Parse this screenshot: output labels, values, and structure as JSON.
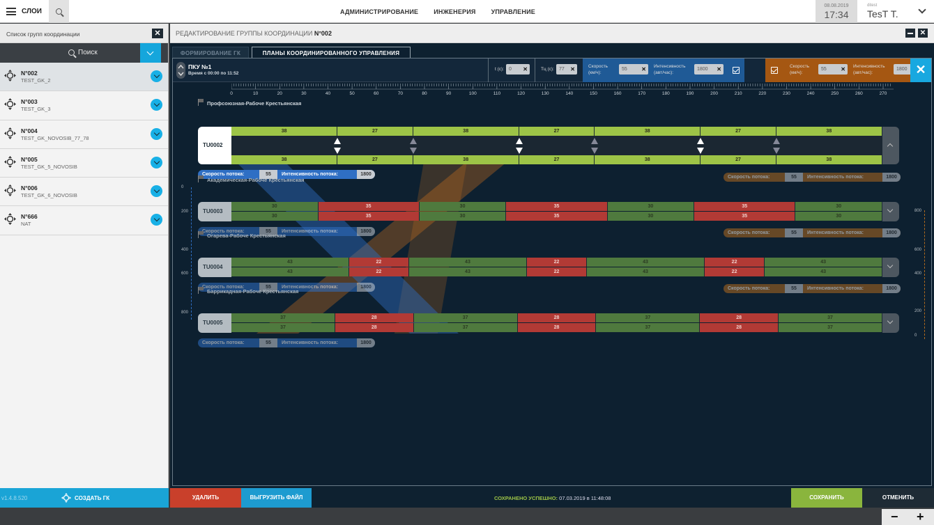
{
  "topbar": {
    "menu_label": "СЛОИ",
    "nav": [
      "АДМИНИСТРИРОВАНИЕ",
      "ИНЖЕНЕРИЯ",
      "УПРАВЛЕНИЕ"
    ],
    "date": "08.08.2019",
    "time": "17:34",
    "role": "ditest",
    "user": "TesT T."
  },
  "left_panel": {
    "title": "Список групп координации",
    "close": "✕",
    "search_label": "Поиск",
    "groups": [
      {
        "num": "N°002",
        "name": "TEST_GK_2"
      },
      {
        "num": "N°003",
        "name": "TEST_GK_3"
      },
      {
        "num": "N°004",
        "name": "TEST_GK_NOVOSIB_77_78"
      },
      {
        "num": "N°005",
        "name": "TEST_GK_5_NOVOSIB"
      },
      {
        "num": "N°006",
        "name": "TEST_GK_6_NOVOSIB"
      },
      {
        "num": "N°666",
        "name": "NAT"
      }
    ],
    "version": "v1.4.8.520",
    "create_label": "СОЗДАТЬ ГК"
  },
  "editor": {
    "title_prefix": "РЕДАКТИРОВАНИЕ ГРУППЫ КООРДИНАЦИИ",
    "title_num": "N°002",
    "close": "✕",
    "tabs": [
      "ФОРМИРОВАНИЕ ГК",
      "ПЛАНЫ КООРДИНИРОВАННОГО УПРАВЛЕНИЯ"
    ],
    "pku_title": "ПКУ №1",
    "pku_time": "Время с 00:00 по 11:52",
    "t_label": "t (c):",
    "t_value": "0",
    "tc_label": "Тц (c):",
    "tc_value": "77",
    "speed_label_1": "Скорость",
    "speed_label_2": "(км/ч):",
    "speed_value": "55",
    "intensity_label_1": "Интенсивность",
    "intensity_label_2": "(авт/час):",
    "intensity_value": "1800",
    "close_x": "✕",
    "field_x": "✕",
    "ruler_labels": [
      "0",
      "10",
      "20",
      "30",
      "40",
      "50",
      "60",
      "70",
      "80",
      "90",
      "100",
      "110",
      "120",
      "130",
      "140",
      "150",
      "160",
      "170",
      "180",
      "190",
      "200",
      "210",
      "220",
      "230",
      "240",
      "250",
      "260",
      "270"
    ],
    "left_axis": [
      "0",
      "200",
      "400",
      "600",
      "800"
    ],
    "right_axis": [
      "800",
      "600",
      "400",
      "200",
      "0"
    ],
    "pill_speed": "Скорость потока:",
    "pill_intensity": "Интенсивность потока:",
    "pill_speed_val": "55",
    "pill_intensity_val": "1800",
    "lanes": [
      {
        "title": "Профсоюзная-Рабоче Крестьянская",
        "tu": "TU0002",
        "top": [
          "38",
          "27",
          "38",
          "27",
          "38",
          "27",
          "38"
        ],
        "bot": [
          "38",
          "27",
          "38",
          "27",
          "38",
          "27",
          "38"
        ]
      },
      {
        "title": "Академическая-Рабоче Крестьянская",
        "tu": "TU0003",
        "top": [
          "30",
          "35",
          "30",
          "35",
          "30",
          "35",
          "30"
        ],
        "bot": [
          "30",
          "35",
          "30",
          "35",
          "30",
          "35",
          "30"
        ]
      },
      {
        "title": "Огарева-Рабоче Крестьянская",
        "tu": "TU0004",
        "top": [
          "43",
          "22",
          "43",
          "22",
          "43",
          "22",
          "43"
        ],
        "bot": [
          "43",
          "22",
          "43",
          "22",
          "43",
          "22",
          "43"
        ]
      },
      {
        "title": "Баррикадная-Рабоче Крестьянская",
        "tu": "TU0005",
        "top": [
          "37",
          "28",
          "37",
          "28",
          "37",
          "28",
          "37"
        ],
        "bot": [
          "37",
          "28",
          "37",
          "28",
          "37",
          "28",
          "37"
        ]
      }
    ]
  },
  "bottom": {
    "delete": "УДАЛИТЬ",
    "export": "ВЫГРУЗИТЬ ФАЙЛ",
    "status_label": "СОХРАНЕНО УСПЕШНО:",
    "status_time": "07.03.2019 в 11:48:08",
    "save": "СОХРАНИТЬ",
    "cancel": "ОТМЕНИТЬ"
  },
  "zoom": {
    "minus": "−",
    "plus": "+"
  },
  "colors": {
    "accent": "#18a8e0",
    "green": "#9dc447",
    "red": "#b23a35",
    "orange": "#a55712",
    "blue": "#1f5a96"
  }
}
